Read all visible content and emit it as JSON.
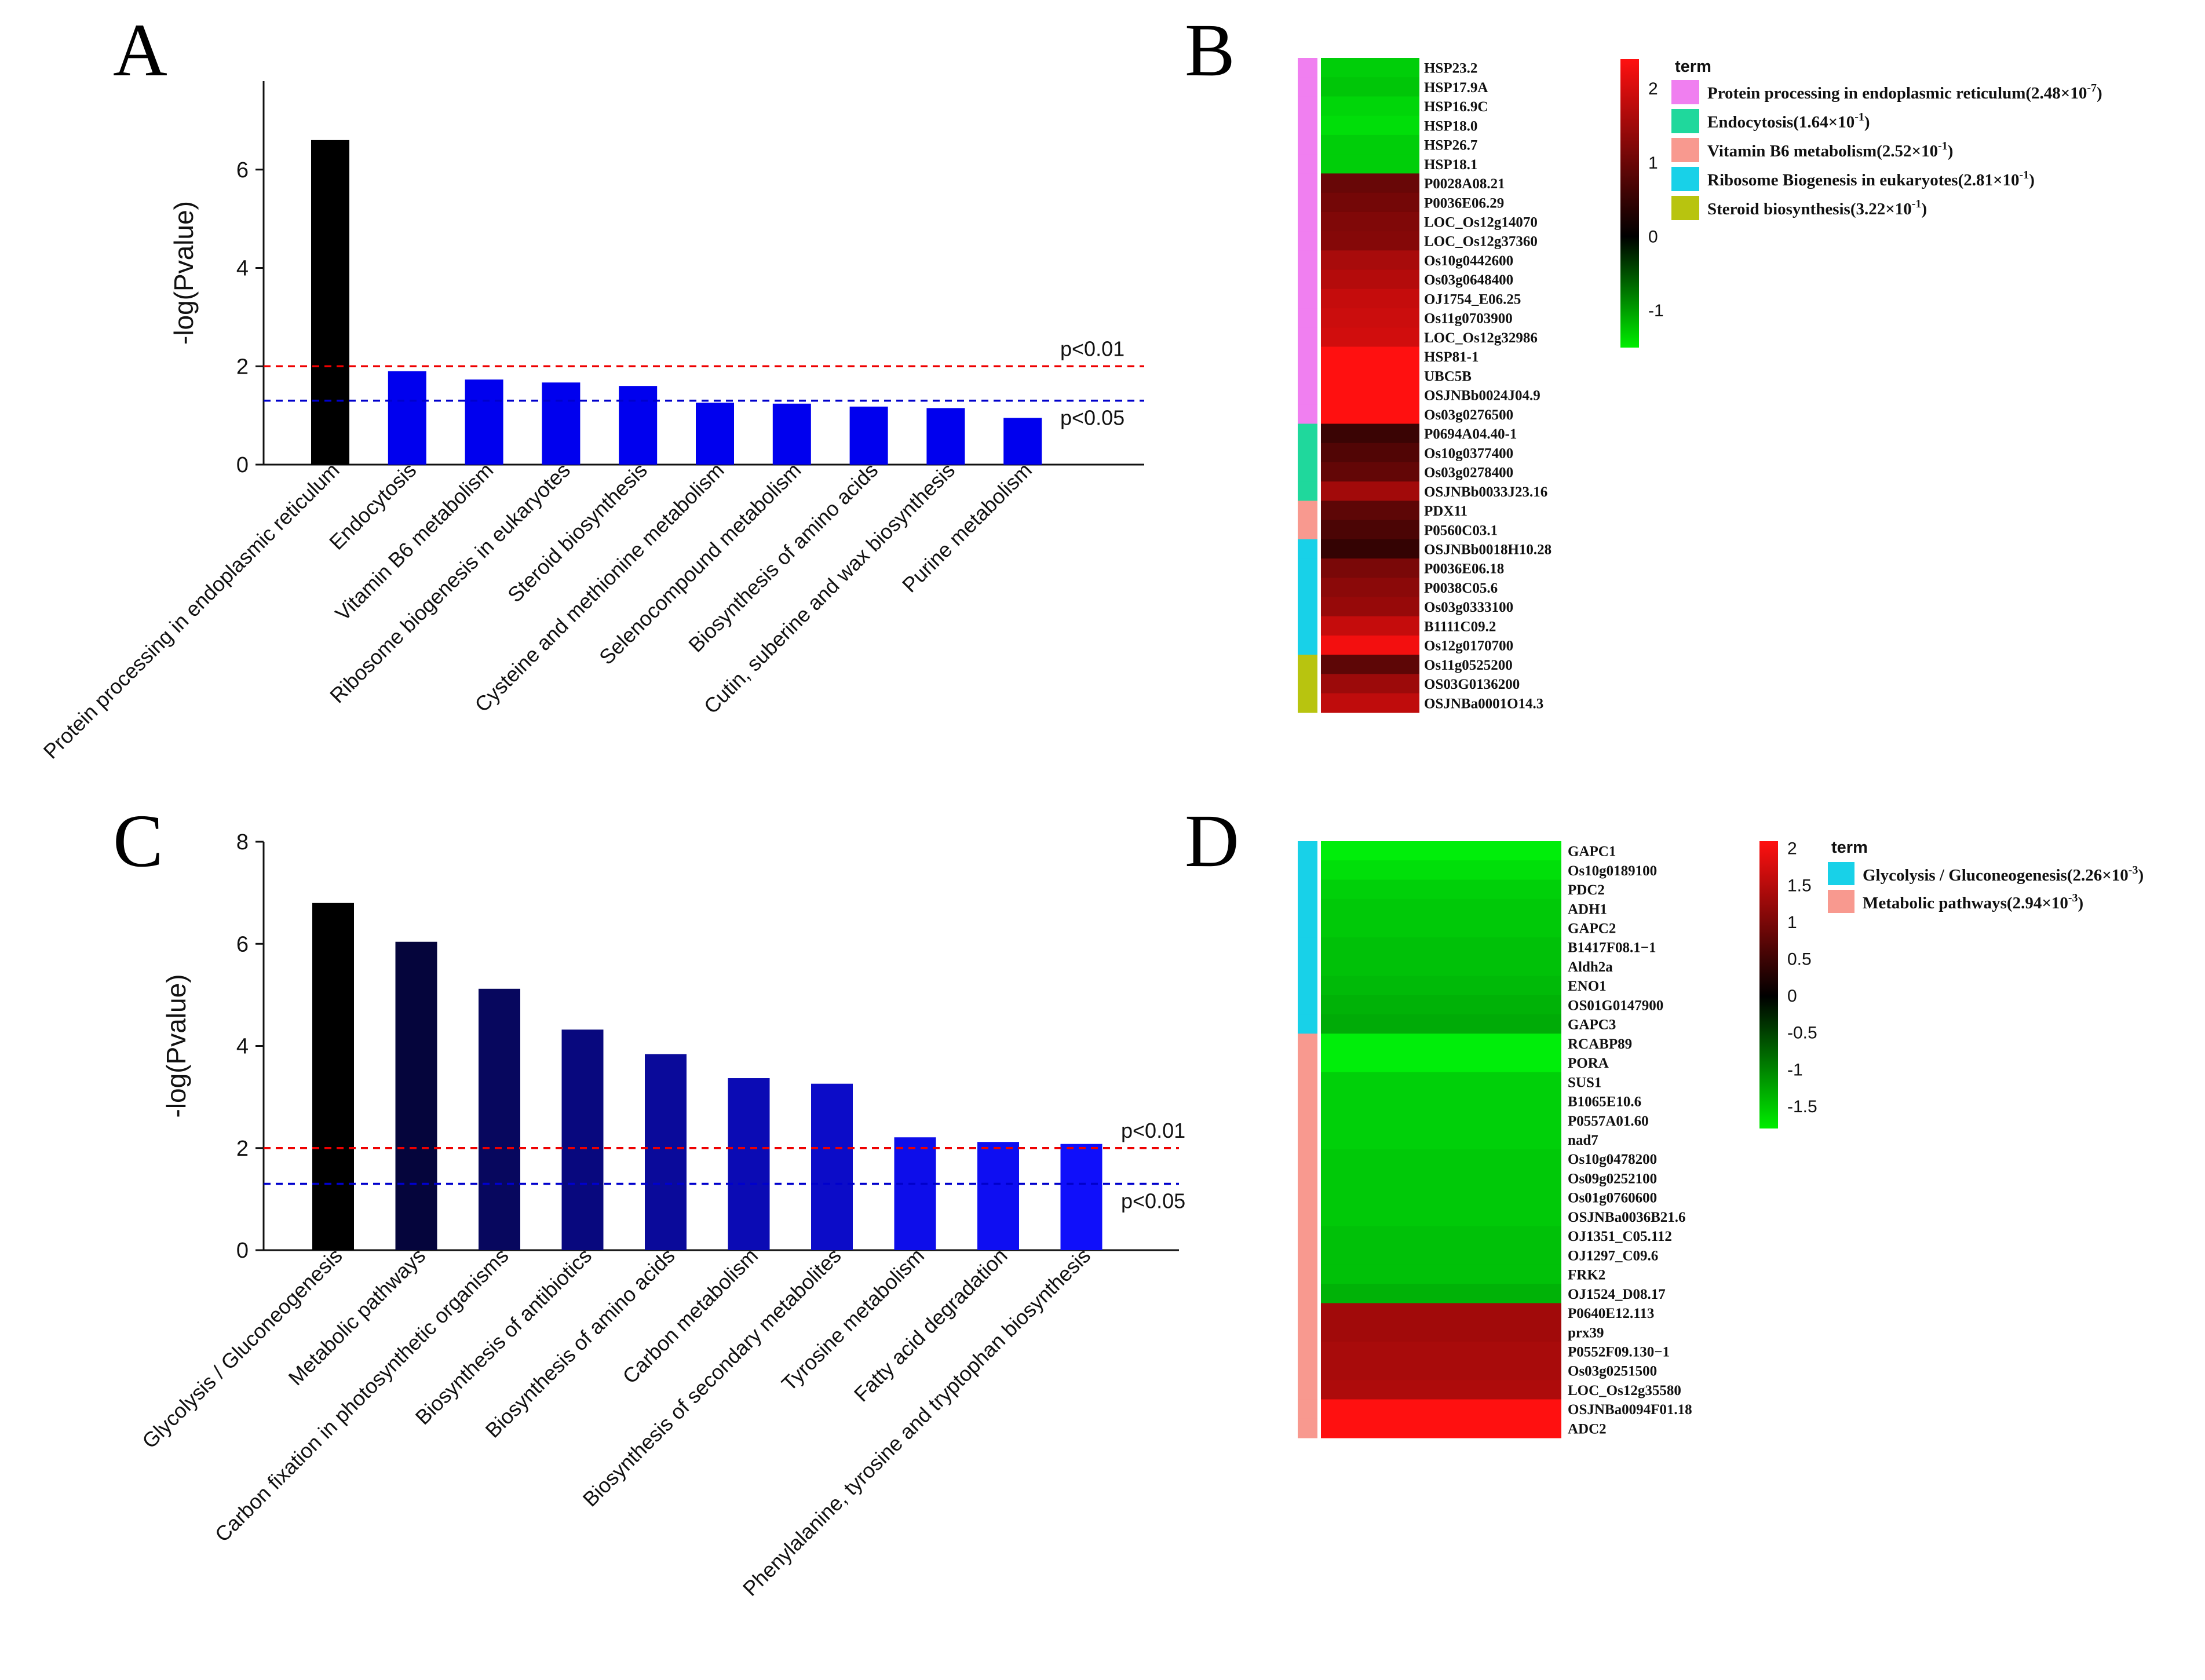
{
  "panels": {
    "A": "A",
    "B": "B",
    "C": "C",
    "D": "D"
  },
  "colors": {
    "bar_top_black": "#000000",
    "bar_blue": "#0000ee",
    "threshold_p01": "#ee0000",
    "threshold_p05": "#0000cc",
    "heat_low": "#00ee00",
    "heat_mid": "#000000",
    "heat_high": "#ff1010",
    "term_pink": "#f07ff0",
    "term_teal": "#1fd89c",
    "term_salmon": "#f8998f",
    "term_cyan": "#18d1e8",
    "term_olive": "#b8c40f"
  },
  "chart_data": [
    {
      "id": "A",
      "type": "bar",
      "ylabel": "-log(Pvalue)",
      "ylim": [
        0,
        7.8
      ],
      "yticks": [
        0,
        2,
        4,
        6
      ],
      "categories": [
        "Protein processing in endoplasmic reticulum",
        "Endocytosis",
        "Vitamin B6 metabolism",
        "Ribosome biogenesis in eukaryotes",
        "Steroid biosynthesis",
        "Cysteine and methionine metabolism",
        "Selenocompound metabolism",
        "Biosynthesis of amino acids",
        "Cutin, suberine and wax biosynthesis",
        "Purine metabolism"
      ],
      "values": [
        6.6,
        1.9,
        1.73,
        1.67,
        1.6,
        1.26,
        1.24,
        1.18,
        1.15,
        0.95
      ],
      "bar_colors": [
        "#000000",
        "#0000ee",
        "#0000ee",
        "#0000ee",
        "#0000ee",
        "#0000ee",
        "#0000ee",
        "#0000ee",
        "#0000ee",
        "#0000ee"
      ],
      "thresholds": [
        {
          "label": "p<0.01",
          "value": 2.0,
          "color": "#ee0000"
        },
        {
          "label": "p<0.05",
          "value": 1.3,
          "color": "#0000cc"
        }
      ]
    },
    {
      "id": "C",
      "type": "bar",
      "ylabel": "-log(Pvalue)",
      "ylim": [
        0,
        8
      ],
      "yticks": [
        0,
        2,
        4,
        6,
        8
      ],
      "categories": [
        "Glycolysis / Gluconeogenesis",
        "Metabolic pathways",
        "Carbon fixation in photosynthetic organisms",
        "Biosynthesis of antibiotics",
        "Biosynthesis of amino acids",
        "Carbon metabolism",
        "Biosynthesis of secondary metabolites",
        "Tyrosine metabolism",
        "Fatty acid degradation",
        "Phenylalanine, tyrosine and tryptophan biosynthesis"
      ],
      "values": [
        6.8,
        6.04,
        5.12,
        4.32,
        3.84,
        3.37,
        3.26,
        2.21,
        2.12,
        2.08
      ],
      "bar_colors": [
        "#000000",
        "#05053c",
        "#07075e",
        "#08087e",
        "#0a0a9a",
        "#0b0bb4",
        "#0c0cc8",
        "#0d0dea",
        "#0e0ef2",
        "#0f0ffa"
      ],
      "thresholds": [
        {
          "label": "p<0.01",
          "value": 2.0,
          "color": "#ee0000"
        },
        {
          "label": "p<0.05",
          "value": 1.3,
          "color": "#0000cc"
        }
      ]
    },
    {
      "id": "B",
      "type": "heatmap",
      "legend_title": "term",
      "colorbar": {
        "min": -1.5,
        "max": 2.4,
        "ticks": [
          2,
          1,
          0,
          -1
        ]
      },
      "terms": [
        {
          "name": "Protein processing in endoplasmic reticulum",
          "p_mantissa": "2.48",
          "p_exponent": "-7",
          "color": "#f07ff0"
        },
        {
          "name": "Endocytosis",
          "p_mantissa": "1.64",
          "p_exponent": "-1",
          "color": "#1fd89c"
        },
        {
          "name": "Vitamin B6 metabolism",
          "p_mantissa": "2.52",
          "p_exponent": "-1",
          "color": "#f8998f"
        },
        {
          "name": "Ribosome Biogenesis in eukaryotes",
          "p_mantissa": "2.81",
          "p_exponent": "-1",
          "color": "#18d1e8"
        },
        {
          "name": "Steroid biosynthesis",
          "p_mantissa": "3.22",
          "p_exponent": "-1",
          "color": "#b8c40f"
        }
      ],
      "genes": [
        "HSP23.2",
        "HSP17.9A",
        "HSP16.9C",
        "HSP18.0",
        "HSP26.7",
        "HSP18.1",
        "P0028A08.21",
        "P0036E06.29",
        "LOC_Os12g14070",
        "LOC_Os12g37360",
        "Os10g0442600",
        "Os03g0648400",
        "OJ1754_E06.25",
        "Os11g0703900",
        "LOC_Os12g32986",
        "HSP81-1",
        "UBC5B",
        "OSJNBb0024J04.9",
        "Os03g0276500",
        "P0694A04.40-1",
        "Os10g0377400",
        "Os03g0278400",
        "OSJNBb0033J23.16",
        "PDX11",
        "P0560C03.1",
        "OSJNBb0018H10.28",
        "P0036E06.18",
        "P0038C05.6",
        "Os03g0333100",
        "B1111C09.2",
        "Os12g0170700",
        "Os11g0525200",
        "OS03G0136200",
        "OSJNBa0001O14.3"
      ],
      "values": [
        -1.3,
        -1.25,
        -1.35,
        -1.4,
        -1.3,
        -1.3,
        0.9,
        1.0,
        1.1,
        1.15,
        1.45,
        1.55,
        1.7,
        1.75,
        1.8,
        2.2,
        2.2,
        2.2,
        2.3,
        0.5,
        0.7,
        0.85,
        1.4,
        0.8,
        0.65,
        0.45,
        1.05,
        1.2,
        1.3,
        1.7,
        2.1,
        0.8,
        1.35,
        1.65
      ],
      "row_terms": [
        0,
        0,
        0,
        0,
        0,
        0,
        0,
        0,
        0,
        0,
        0,
        0,
        0,
        0,
        0,
        0,
        0,
        0,
        0,
        1,
        1,
        1,
        1,
        2,
        2,
        3,
        3,
        3,
        3,
        3,
        3,
        4,
        4,
        4
      ]
    },
    {
      "id": "D",
      "type": "heatmap",
      "legend_title": "term",
      "colorbar": {
        "min": -1.8,
        "max": 2.1,
        "ticks": [
          "2",
          "1.5",
          "1",
          "0.5",
          "0",
          "-0.5",
          "-1",
          "-1.5"
        ]
      },
      "terms": [
        {
          "name": "Glycolysis / Gluconeogenesis",
          "p_mantissa": "2.26",
          "p_exponent": "-3",
          "color": "#18d1e8"
        },
        {
          "name": "Metabolic pathways",
          "p_mantissa": "2.94",
          "p_exponent": "-3",
          "color": "#f8998f"
        }
      ],
      "genes": [
        "GAPC1",
        "Os10g0189100",
        "PDC2",
        "ADH1",
        "GAPC2",
        "B1417F08.1−1",
        "Aldh2a",
        "ENO1",
        "OS01G0147900",
        "GAPC3",
        "RCABP89",
        "PORA",
        "SUS1",
        "B1065E10.6",
        "P0557A01.60",
        "nad7",
        "Os10g0478200",
        "Os09g0252100",
        "Os01g0760600",
        "OSJNBa0036B21.6",
        "OJ1351_C05.112",
        "OJ1297_C09.6",
        "FRK2",
        "OJ1524_D08.17",
        "P0640E12.113",
        "prx39",
        "P0552F09.130−1",
        "Os03g0251500",
        "LOC_Os12g35580",
        "OSJNBa0094F01.18",
        "ADC2"
      ],
      "values": [
        -1.6,
        -1.5,
        -1.4,
        -1.35,
        -1.35,
        -1.3,
        -1.3,
        -1.25,
        -1.2,
        -1.15,
        -1.8,
        -1.6,
        -1.4,
        -1.4,
        -1.4,
        -1.4,
        -1.35,
        -1.35,
        -1.35,
        -1.35,
        -1.3,
        -1.3,
        -1.3,
        -1.2,
        1.2,
        1.2,
        1.25,
        1.25,
        1.3,
        2.0,
        2.0
      ],
      "row_terms": [
        0,
        0,
        0,
        0,
        0,
        0,
        0,
        0,
        0,
        0,
        1,
        1,
        1,
        1,
        1,
        1,
        1,
        1,
        1,
        1,
        1,
        1,
        1,
        1,
        1,
        1,
        1,
        1,
        1,
        1,
        1
      ]
    }
  ]
}
